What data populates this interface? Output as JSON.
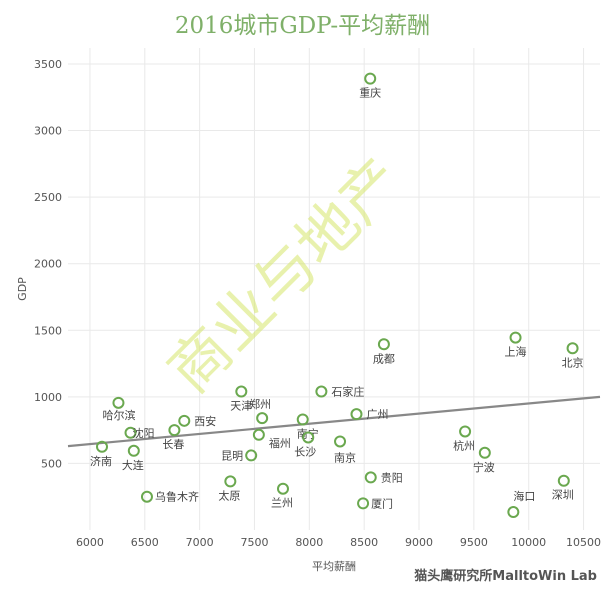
{
  "title": "2016城市GDP-平均薪酬",
  "footer": "猫头鹰研究所MalltoWin Lab",
  "watermark": "商业与地产",
  "colors": {
    "title": "#7fb069",
    "point": "#6aa84f",
    "trend": "#888888",
    "grid": "#e9e9e9"
  },
  "chart_data": {
    "type": "scatter",
    "title": "2016城市GDP-平均薪酬",
    "xlabel": "平均薪酬",
    "ylabel": "GDP",
    "xlim": [
      5800,
      10650
    ],
    "ylim": [
      0,
      3620
    ],
    "xticks": [
      6000,
      6500,
      7000,
      7500,
      8000,
      8500,
      9000,
      9500,
      10000,
      10500
    ],
    "yticks": [
      500,
      1000,
      1500,
      2000,
      2500,
      3000,
      3500
    ],
    "trendline": {
      "x": [
        5800,
        10650
      ],
      "y": [
        630,
        1000
      ]
    },
    "points": [
      {
        "label": "重庆",
        "x": 8555,
        "y": 3390
      },
      {
        "label": "上海",
        "x": 9880,
        "y": 1445
      },
      {
        "label": "北京",
        "x": 10400,
        "y": 1365
      },
      {
        "label": "成都",
        "x": 8680,
        "y": 1395
      },
      {
        "label": "天津",
        "x": 7380,
        "y": 1040
      },
      {
        "label": "石家庄",
        "x": 8110,
        "y": 1040
      },
      {
        "label": "哈尔滨",
        "x": 6260,
        "y": 955
      },
      {
        "label": "西安",
        "x": 6860,
        "y": 820
      },
      {
        "label": "郑州",
        "x": 7570,
        "y": 840
      },
      {
        "label": "南宁",
        "x": 7940,
        "y": 830
      },
      {
        "label": "广州",
        "x": 8430,
        "y": 870
      },
      {
        "label": "沈阳",
        "x": 6370,
        "y": 730
      },
      {
        "label": "长春",
        "x": 6770,
        "y": 750
      },
      {
        "label": "福州",
        "x": 7540,
        "y": 715
      },
      {
        "label": "长沙",
        "x": 7990,
        "y": 695
      },
      {
        "label": "南京",
        "x": 8280,
        "y": 665
      },
      {
        "label": "济南",
        "x": 6110,
        "y": 625
      },
      {
        "label": "大连",
        "x": 6400,
        "y": 595
      },
      {
        "label": "昆明",
        "x": 7470,
        "y": 560
      },
      {
        "label": "杭州",
        "x": 9420,
        "y": 740
      },
      {
        "label": "宁波",
        "x": 9600,
        "y": 580
      },
      {
        "label": "贵阳",
        "x": 8560,
        "y": 395
      },
      {
        "label": "太原",
        "x": 7280,
        "y": 365
      },
      {
        "label": "兰州",
        "x": 7760,
        "y": 310
      },
      {
        "label": "乌鲁木齐",
        "x": 6520,
        "y": 250
      },
      {
        "label": "厦门",
        "x": 8490,
        "y": 200
      },
      {
        "label": "海口",
        "x": 9860,
        "y": 135
      },
      {
        "label": "深圳",
        "x": 10320,
        "y": 370
      }
    ]
  }
}
